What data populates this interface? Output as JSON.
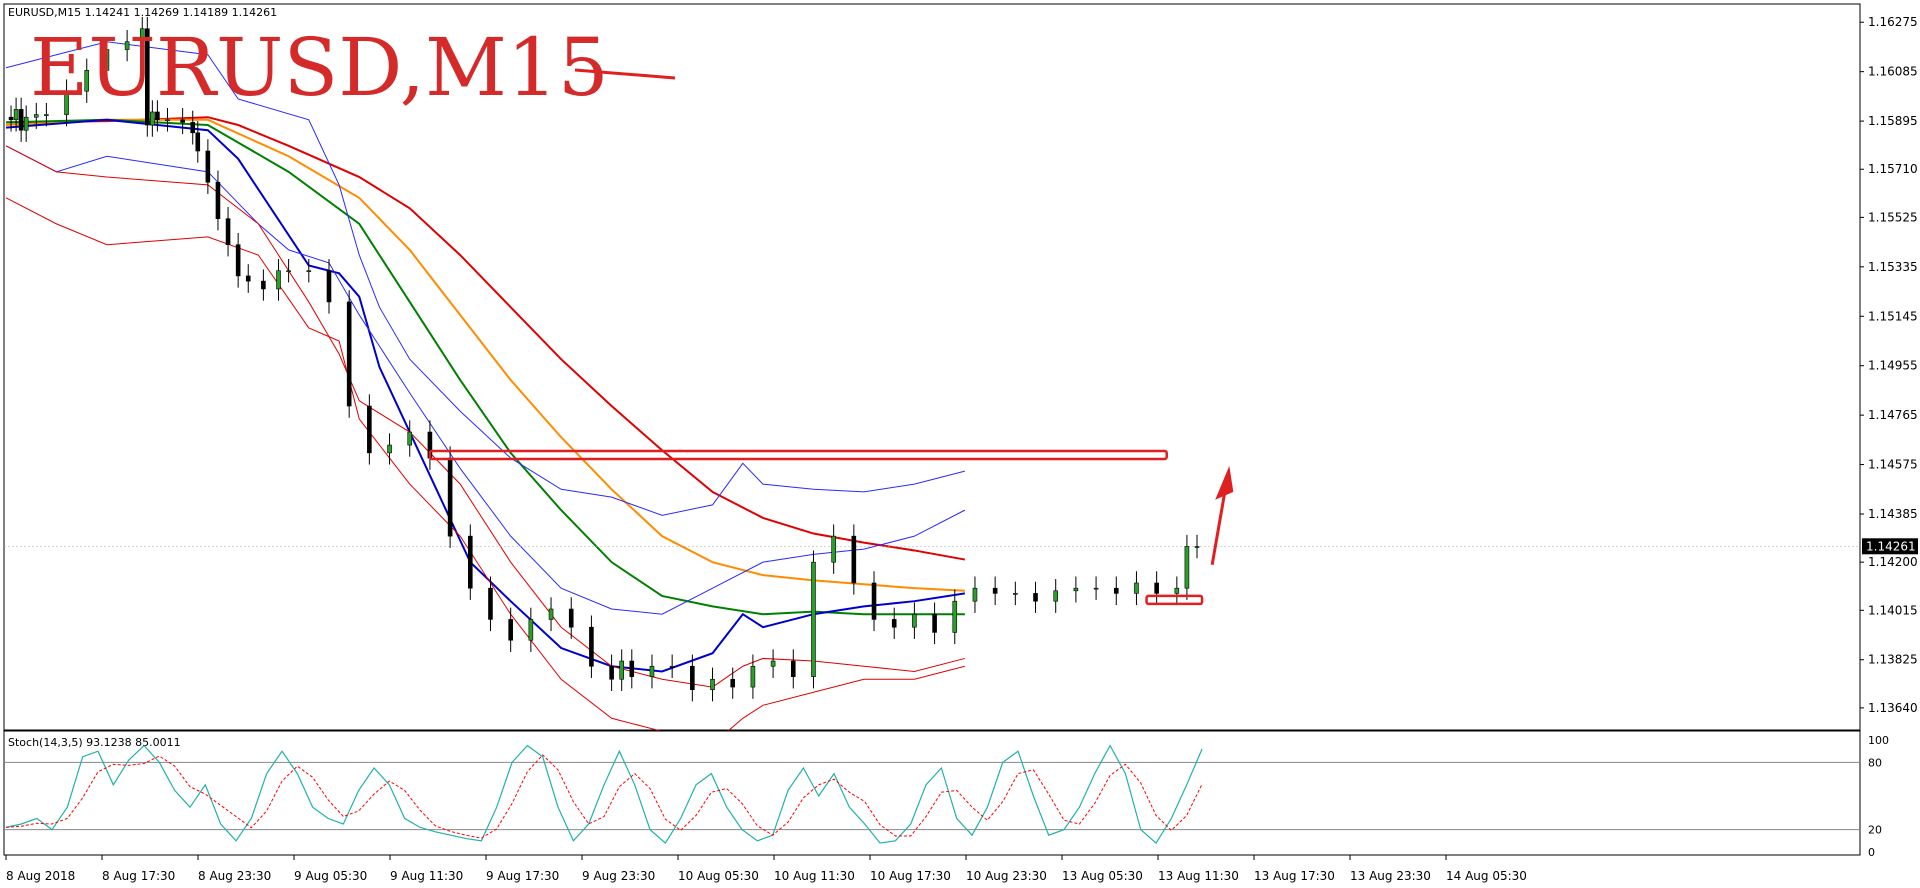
{
  "chart_data": {
    "type": "line",
    "symbol_header": "EURUSD,M15  1.14241 1.14269 1.14189 1.14261",
    "watermark": "EURUSD,M15",
    "current_price": 1.14261,
    "current_price_label": "1.14261",
    "y_ticks": [
      "1.16275",
      "1.16085",
      "1.15895",
      "1.15710",
      "1.15525",
      "1.15335",
      "1.15145",
      "1.14955",
      "1.14765",
      "1.14575",
      "1.14385",
      "1.14200",
      "1.14015",
      "1.13825",
      "1.13640"
    ],
    "ylim": [
      1.13555,
      1.16345
    ],
    "x_ticks": [
      "8 Aug 2018",
      "8 Aug 17:30",
      "8 Aug 23:30",
      "9 Aug 05:30",
      "9 Aug 11:30",
      "9 Aug 17:30",
      "9 Aug 23:30",
      "10 Aug 05:30",
      "10 Aug 11:30",
      "10 Aug 17:30",
      "10 Aug 23:30",
      "13 Aug 05:30",
      "13 Aug 11:30",
      "13 Aug 17:30",
      "13 Aug 23:30",
      "14 Aug 05:30"
    ],
    "price_series": {
      "name": "EURUSD close",
      "x": [
        0,
        5,
        10,
        15,
        20,
        30,
        40,
        60,
        80,
        100,
        120,
        135,
        140,
        145,
        150,
        160,
        175,
        185,
        190,
        200,
        210,
        220,
        230,
        240,
        255,
        270,
        280,
        300,
        320,
        340,
        360,
        380,
        400,
        420,
        440,
        460,
        480,
        500,
        520,
        540,
        560,
        580,
        600,
        610,
        620,
        640,
        660,
        680,
        700,
        720,
        740,
        760,
        780,
        800,
        820,
        840,
        860,
        880,
        900,
        920,
        940,
        960,
        980,
        1000,
        1020,
        1040,
        1060,
        1080,
        1100,
        1120,
        1140,
        1160,
        1170,
        1180
      ],
      "close": [
        1.1591,
        1.159,
        1.1594,
        1.1586,
        1.1591,
        1.1592,
        1.1592,
        1.1601,
        1.1609,
        1.1617,
        1.162,
        1.1625,
        1.1588,
        1.1593,
        1.159,
        1.159,
        1.1589,
        1.1585,
        1.1578,
        1.1566,
        1.1552,
        1.1542,
        1.153,
        1.1528,
        1.1525,
        1.1532,
        1.1532,
        1.1532,
        1.152,
        1.148,
        1.1462,
        1.1465,
        1.147,
        1.146,
        1.143,
        1.141,
        1.1398,
        1.139,
        1.1398,
        1.1402,
        1.1395,
        1.138,
        1.1375,
        1.1382,
        1.1376,
        1.138,
        1.138,
        1.1371,
        1.1375,
        1.1372,
        1.138,
        1.1382,
        1.1376,
        1.142,
        1.143,
        1.1412,
        1.1398,
        1.1395,
        1.14,
        1.1393,
        1.1405,
        1.141,
        1.1408,
        1.1408,
        1.1405,
        1.1409,
        1.141,
        1.141,
        1.1408,
        1.1412,
        1.1408,
        1.141,
        1.1426,
        1.1426
      ]
    },
    "indicator_lines": [
      {
        "color": "#e00000",
        "width": 2,
        "points": [
          [
            0,
            1.1589
          ],
          [
            100,
            1.15895
          ],
          [
            200,
            1.1591
          ],
          [
            230,
            1.1588
          ],
          [
            280,
            1.158
          ],
          [
            350,
            1.1568
          ],
          [
            400,
            1.1556
          ],
          [
            450,
            1.1538
          ],
          [
            500,
            1.1518
          ],
          [
            550,
            1.1498
          ],
          [
            600,
            1.148
          ],
          [
            650,
            1.1463
          ],
          [
            700,
            1.1447
          ],
          [
            750,
            1.1437
          ],
          [
            800,
            1.1431
          ],
          [
            850,
            1.14275
          ],
          [
            900,
            1.14245
          ],
          [
            950,
            1.1421
          ]
        ]
      },
      {
        "color": "#ff8c00",
        "width": 2,
        "points": [
          [
            0,
            1.1588
          ],
          [
            100,
            1.159
          ],
          [
            200,
            1.159
          ],
          [
            280,
            1.1576
          ],
          [
            350,
            1.156
          ],
          [
            400,
            1.154
          ],
          [
            450,
            1.1515
          ],
          [
            500,
            1.149
          ],
          [
            550,
            1.1468
          ],
          [
            600,
            1.1448
          ],
          [
            650,
            1.143
          ],
          [
            700,
            1.142
          ],
          [
            750,
            1.1415
          ],
          [
            800,
            1.1413
          ],
          [
            850,
            1.14115
          ],
          [
            900,
            1.141
          ],
          [
            950,
            1.1409
          ]
        ]
      },
      {
        "color": "#008000",
        "width": 2,
        "points": [
          [
            0,
            1.1589
          ],
          [
            100,
            1.159
          ],
          [
            200,
            1.1588
          ],
          [
            280,
            1.157
          ],
          [
            350,
            1.155
          ],
          [
            400,
            1.152
          ],
          [
            450,
            1.149
          ],
          [
            500,
            1.1462
          ],
          [
            550,
            1.144
          ],
          [
            600,
            1.142
          ],
          [
            650,
            1.1407
          ],
          [
            700,
            1.1403
          ],
          [
            750,
            1.14
          ],
          [
            800,
            1.1401
          ],
          [
            850,
            1.14
          ],
          [
            900,
            1.14
          ],
          [
            950,
            1.14
          ]
        ]
      },
      {
        "color": "#0000cc",
        "width": 2,
        "points": [
          [
            0,
            1.1587
          ],
          [
            100,
            1.159
          ],
          [
            200,
            1.1586
          ],
          [
            230,
            1.1575
          ],
          [
            300,
            1.1534
          ],
          [
            330,
            1.1531
          ],
          [
            350,
            1.1522
          ],
          [
            370,
            1.1495
          ],
          [
            400,
            1.147
          ],
          [
            430,
            1.1445
          ],
          [
            460,
            1.142
          ],
          [
            500,
            1.1405
          ],
          [
            550,
            1.1387
          ],
          [
            600,
            1.138
          ],
          [
            650,
            1.1378
          ],
          [
            700,
            1.1385
          ],
          [
            730,
            1.14
          ],
          [
            750,
            1.1395
          ],
          [
            800,
            1.14
          ],
          [
            850,
            1.1403
          ],
          [
            900,
            1.1405
          ],
          [
            950,
            1.1408
          ]
        ]
      },
      {
        "color": "#2a2aff",
        "width": 1,
        "points": [
          [
            0,
            1.161
          ],
          [
            100,
            1.162
          ],
          [
            200,
            1.1615
          ],
          [
            230,
            1.1598
          ],
          [
            300,
            1.159
          ],
          [
            330,
            1.1565
          ],
          [
            350,
            1.1538
          ],
          [
            370,
            1.1518
          ],
          [
            400,
            1.1498
          ],
          [
            450,
            1.1478
          ],
          [
            500,
            1.146
          ],
          [
            550,
            1.1448
          ],
          [
            600,
            1.1445
          ],
          [
            650,
            1.1438
          ],
          [
            700,
            1.1442
          ],
          [
            730,
            1.1458
          ],
          [
            750,
            1.145
          ],
          [
            800,
            1.1448
          ],
          [
            850,
            1.1447
          ],
          [
            900,
            1.145
          ],
          [
            950,
            1.1455
          ]
        ]
      },
      {
        "color": "#2a2aff",
        "width": 1,
        "points": [
          [
            0,
            1.158
          ],
          [
            50,
            1.157
          ],
          [
            100,
            1.1576
          ],
          [
            200,
            1.157
          ],
          [
            250,
            1.155
          ],
          [
            280,
            1.154
          ],
          [
            320,
            1.1535
          ],
          [
            350,
            1.1515
          ],
          [
            400,
            1.1485
          ],
          [
            450,
            1.1456
          ],
          [
            500,
            1.143
          ],
          [
            550,
            1.141
          ],
          [
            600,
            1.1402
          ],
          [
            650,
            1.14
          ],
          [
            700,
            1.141
          ],
          [
            750,
            1.142
          ],
          [
            800,
            1.1423
          ],
          [
            850,
            1.1425
          ],
          [
            900,
            1.143
          ],
          [
            950,
            1.144
          ]
        ]
      },
      {
        "color": "#e00000",
        "width": 1,
        "points": [
          [
            0,
            1.158
          ],
          [
            50,
            1.157
          ],
          [
            100,
            1.1568
          ],
          [
            200,
            1.1565
          ],
          [
            250,
            1.155
          ],
          [
            300,
            1.152
          ],
          [
            330,
            1.15
          ],
          [
            350,
            1.1482
          ],
          [
            400,
            1.147
          ],
          [
            450,
            1.145
          ],
          [
            500,
            1.142
          ],
          [
            550,
            1.1395
          ],
          [
            600,
            1.138
          ],
          [
            650,
            1.1375
          ],
          [
            700,
            1.1372
          ],
          [
            730,
            1.138
          ],
          [
            750,
            1.1383
          ],
          [
            800,
            1.1382
          ],
          [
            850,
            1.138
          ],
          [
            900,
            1.1378
          ],
          [
            950,
            1.1383
          ]
        ]
      },
      {
        "color": "#e00000",
        "width": 1,
        "points": [
          [
            0,
            1.156
          ],
          [
            50,
            1.155
          ],
          [
            100,
            1.1542
          ],
          [
            200,
            1.1545
          ],
          [
            250,
            1.1538
          ],
          [
            300,
            1.151
          ],
          [
            330,
            1.1505
          ],
          [
            350,
            1.1475
          ],
          [
            400,
            1.145
          ],
          [
            450,
            1.143
          ],
          [
            500,
            1.14
          ],
          [
            550,
            1.1375
          ],
          [
            600,
            1.136
          ],
          [
            650,
            1.1355
          ],
          [
            700,
            1.135
          ],
          [
            730,
            1.136
          ],
          [
            750,
            1.1365
          ],
          [
            800,
            1.137
          ],
          [
            850,
            1.1375
          ],
          [
            900,
            1.1375
          ],
          [
            950,
            1.138
          ]
        ]
      }
    ],
    "annotations": {
      "resistance_level": 1.14612,
      "support_level": 1.14055
    },
    "stochastic": {
      "label": "Stoch(14,3,5) 93.1238 85.0011",
      "ticks": [
        "100",
        "80",
        "20",
        "0"
      ],
      "ylim": [
        0,
        100
      ],
      "main_color": "#20b2aa",
      "signal_color": "#ff0000",
      "values": [
        22,
        25,
        30,
        20,
        40,
        85,
        90,
        60,
        82,
        95,
        80,
        55,
        40,
        60,
        25,
        10,
        30,
        70,
        90,
        70,
        40,
        30,
        25,
        55,
        75,
        60,
        30,
        22,
        18,
        15,
        12,
        10,
        40,
        80,
        95,
        85,
        40,
        10,
        25,
        60,
        90,
        60,
        20,
        8,
        30,
        60,
        70,
        40,
        20,
        10,
        15,
        55,
        75,
        50,
        70,
        40,
        25,
        8,
        10,
        25,
        60,
        75,
        30,
        15,
        40,
        80,
        90,
        50,
        15,
        20,
        40,
        70,
        95,
        70,
        20,
        8,
        30,
        60,
        92
      ]
    }
  }
}
